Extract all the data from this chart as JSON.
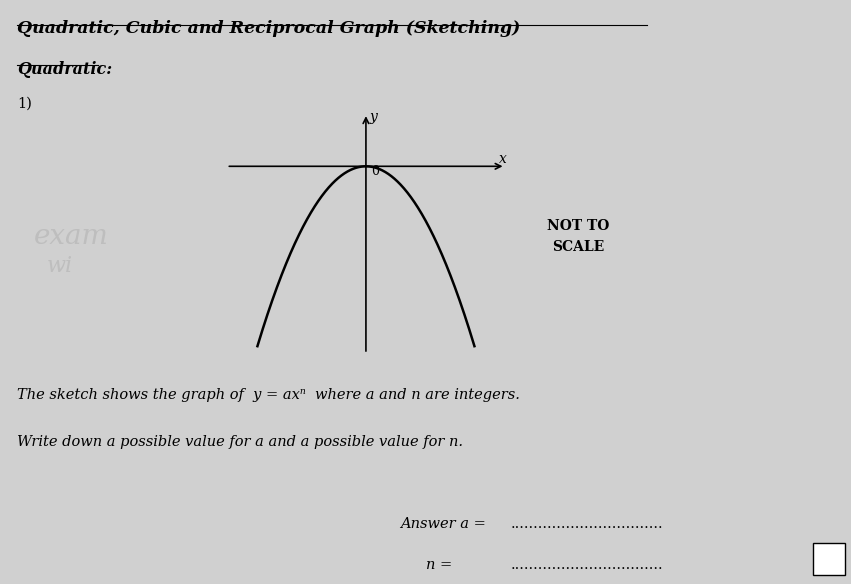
{
  "title": "Quadratic, Cubic and Reciprocal Graph (Sketching)",
  "subtitle": "Quadratic:",
  "question_number": "1)",
  "background_color": "#d0d0d0",
  "text_color": "#000000",
  "graph_sketch": {
    "curve_color": "#000000",
    "origin_label": "0",
    "x_label": "x",
    "y_label": "y"
  },
  "not_to_scale_text": "NOT TO\nSCALE",
  "watermark_line1": "exam",
  "watermark_line2": "wi",
  "description_line1": "The sketch shows the graph of  y = axⁿ  where a and n are integers.",
  "description_line2": "Write down a possible value for a and a possible value for n.",
  "answer_label1": "Answer a =",
  "answer_label2": "n =",
  "dotted_line": ".................................",
  "title_fontsize": 12.5,
  "subtitle_fontsize": 11.5,
  "body_fontsize": 10.5,
  "answer_fontsize": 10.5
}
